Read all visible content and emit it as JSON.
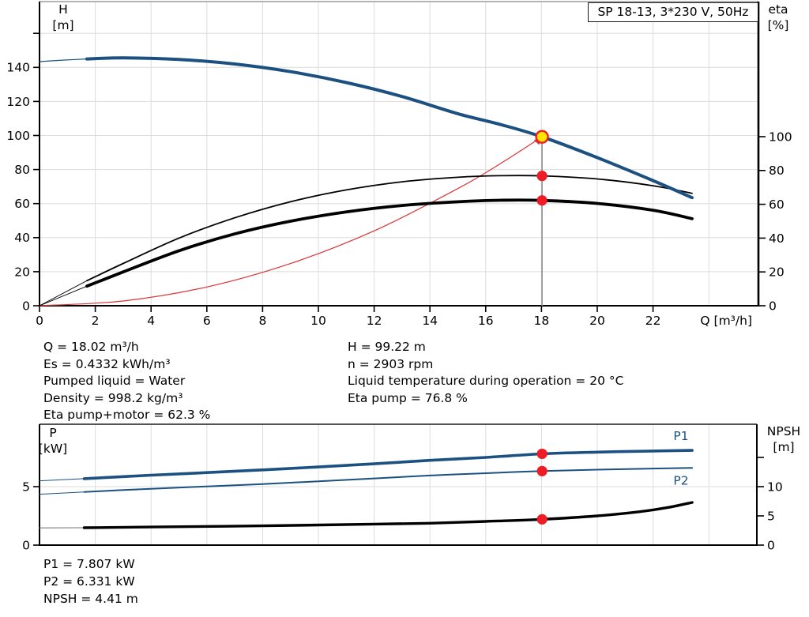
{
  "title_box": "SP 18-13, 3*230 V, 50Hz",
  "axis_corners": {
    "head_left_1": "H",
    "head_left_2": "[m]",
    "head_right_1": "eta",
    "head_right_2": "[%]",
    "power_left_1": "P",
    "power_left_2": "[kW]",
    "power_right_1": "NPSH",
    "power_right_2": "[m]"
  },
  "info_top_left": [
    "Q = 18.02 m³/h",
    "Es = 0.4332 kWh/m³",
    "Pumped liquid = Water",
    "Density = 998.2 kg/m³",
    "Eta pump+motor = 62.3 %"
  ],
  "info_top_right": [
    "H = 99.22 m",
    "n = 2903 rpm",
    "Liquid temperature during operation = 20 °C",
    "Eta pump = 76.8 %"
  ],
  "info_bottom": [
    "P1 = 7.807 kW",
    "P2 = 6.331 kW",
    "NPSH = 4.41 m"
  ],
  "colors": {
    "curve_blue": "#1b5080",
    "curve_black": "#000000",
    "system_red": "#d93535",
    "marker_red": "#ee1c25",
    "duty_yellow": "#ffe400",
    "grid": "#dcdcdc",
    "duty_line": "#8f8f8f",
    "lead_gray": "#777777"
  },
  "chart_data": [
    {
      "id": "head",
      "type": "line",
      "title": "SP 18-13, 3*230 V, 50Hz",
      "x_axis": {
        "label": "Q [m³/h]",
        "min": 0,
        "max": 25.78,
        "ticks": [
          {
            "v": 0,
            "label": "0"
          },
          {
            "v": 2,
            "label": "2"
          },
          {
            "v": 4,
            "label": "4"
          },
          {
            "v": 6,
            "label": "6"
          },
          {
            "v": 8,
            "label": "8"
          },
          {
            "v": 10,
            "label": "10"
          },
          {
            "v": 12,
            "label": "12"
          },
          {
            "v": 14,
            "label": "14"
          },
          {
            "v": 16,
            "label": "16"
          },
          {
            "v": 18,
            "label": "18"
          },
          {
            "v": 20,
            "label": "20"
          },
          {
            "v": 22,
            "label": "22"
          }
        ],
        "grid": [
          2,
          4,
          6,
          8,
          10,
          12,
          14,
          16,
          18,
          20,
          22,
          24
        ]
      },
      "y_left": {
        "label": "H [m]",
        "min": 0,
        "max": 178,
        "ticks": [
          {
            "v": 0,
            "label": "0"
          },
          {
            "v": 20,
            "label": "20"
          },
          {
            "v": 40,
            "label": "40"
          },
          {
            "v": 60,
            "label": "60"
          },
          {
            "v": 80,
            "label": "80"
          },
          {
            "v": 100,
            "label": "100"
          },
          {
            "v": 120,
            "label": "120"
          },
          {
            "v": 140,
            "label": "140"
          },
          {
            "v": 160,
            "label": ""
          }
        ],
        "grid": [
          20,
          40,
          60,
          80,
          100,
          120,
          140,
          160
        ]
      },
      "y_right": {
        "label": "eta [%]",
        "min": 0,
        "max": 178,
        "ticks": [
          {
            "v": 0,
            "label": "0"
          },
          {
            "v": 20,
            "label": "20"
          },
          {
            "v": 40,
            "label": "40"
          },
          {
            "v": 60,
            "label": "60"
          },
          {
            "v": 80,
            "label": "80"
          },
          {
            "v": 100,
            "label": "100"
          }
        ]
      },
      "series": [
        {
          "name": "system-curve",
          "color": "#d93535",
          "width": 1.2,
          "axis": "left",
          "points": [
            [
              0,
              0
            ],
            [
              3,
              2.8
            ],
            [
              6,
              11.0
            ],
            [
              9,
              24.8
            ],
            [
              12,
              44.0
            ],
            [
              15,
              68.8
            ],
            [
              16.5,
              83.2
            ],
            [
              18.02,
              99.22
            ]
          ]
        },
        {
          "name": "eta-pump-motor-lead",
          "color": "#000000",
          "width": 0.9,
          "axis": "right",
          "points": [
            [
              0,
              0
            ],
            [
              1.7,
              11.6
            ]
          ]
        },
        {
          "name": "eta-pump-motor-curve",
          "color": "#000000",
          "width": 3.8,
          "axis": "right",
          "points": [
            [
              1.7,
              11.6
            ],
            [
              3,
              20
            ],
            [
              5,
              32.5
            ],
            [
              7,
              42.5
            ],
            [
              9,
              50
            ],
            [
              11,
              55.5
            ],
            [
              13,
              59.3
            ],
            [
              15,
              61.5
            ],
            [
              16.5,
              62.4
            ],
            [
              18.02,
              62.3
            ],
            [
              20,
              60.5
            ],
            [
              22,
              56.5
            ],
            [
              23.4,
              51.5
            ]
          ]
        },
        {
          "name": "eta-pump-lead",
          "color": "#000000",
          "width": 0.9,
          "axis": "right",
          "points": [
            [
              0,
              0
            ],
            [
              1.7,
              14.8
            ]
          ]
        },
        {
          "name": "eta-pump-curve",
          "color": "#000000",
          "width": 1.8,
          "axis": "right",
          "points": [
            [
              1.7,
              14.8
            ],
            [
              3,
              25
            ],
            [
              5,
              40
            ],
            [
              7,
              52
            ],
            [
              9,
              61.5
            ],
            [
              11,
              68.5
            ],
            [
              13,
              73.3
            ],
            [
              15,
              76.0
            ],
            [
              16.5,
              76.9
            ],
            [
              18.02,
              76.8
            ],
            [
              20,
              75.0
            ],
            [
              22,
              71.0
            ],
            [
              23.4,
              66.5
            ]
          ]
        },
        {
          "name": "pump-curve-lead",
          "color": "#1b5080",
          "width": 1.2,
          "axis": "left",
          "points": [
            [
              0,
              143.4
            ],
            [
              0.9,
              144.3
            ],
            [
              1.7,
              144.95
            ]
          ]
        },
        {
          "name": "pump-curve",
          "color": "#1b5080",
          "width": 4,
          "axis": "left",
          "points": [
            [
              1.7,
              144.95
            ],
            [
              3,
              145.6
            ],
            [
              5,
              144.7
            ],
            [
              7,
              142.0
            ],
            [
              9,
              137.5
            ],
            [
              11,
              131.1
            ],
            [
              13,
              122.9
            ],
            [
              15,
              112.8
            ],
            [
              16.5,
              106.6
            ],
            [
              18.02,
              99.22
            ],
            [
              20,
              87.0
            ],
            [
              22,
              73.5
            ],
            [
              23.4,
              63.5
            ]
          ]
        }
      ],
      "labels": [],
      "markers": [
        {
          "type": "vline",
          "q": 18.02,
          "v": 99.22,
          "axis": "left",
          "color": "#8f8f8f"
        },
        {
          "type": "arrow",
          "q": 18.02,
          "v": 99.22,
          "axis": "left",
          "color": "#d93535"
        },
        {
          "type": "dot",
          "name": "eta-pump-duty-dot",
          "q": 18.02,
          "v": 76.8,
          "axis": "right",
          "r": 6.6,
          "fill": "#ee1c25"
        },
        {
          "type": "dot",
          "name": "eta-pump-motor-duty-dot",
          "q": 18.02,
          "v": 62.3,
          "axis": "right",
          "r": 6.6,
          "fill": "#ee1c25"
        },
        {
          "type": "duty",
          "name": "duty-point",
          "q": 18.02,
          "v": 99.22,
          "axis": "left",
          "r": 7.5,
          "fill": "#ffe400",
          "stroke": "#ee1c25"
        }
      ],
      "duty_values": {
        "Q": 18.02,
        "H": 99.22,
        "eta_pump": 76.8,
        "eta_pump_motor": 62.3
      }
    },
    {
      "id": "power",
      "type": "line",
      "x_axis": {
        "label": "",
        "min": 0,
        "max": 25.72,
        "ticks": [],
        "grid": [
          2,
          4,
          6,
          8,
          10,
          12,
          14,
          16,
          18,
          20,
          22,
          24
        ]
      },
      "y_left": {
        "label": "P [kW]",
        "min": 0,
        "max": 10.3,
        "ticks": [
          {
            "v": 0,
            "label": "0"
          },
          {
            "v": 5,
            "label": "5"
          }
        ],
        "grid": [
          5
        ]
      },
      "y_right": {
        "label": "NPSH [m]",
        "min": 0,
        "max": 20.7,
        "ticks": [
          {
            "v": 0,
            "label": "0"
          },
          {
            "v": 5,
            "label": "5"
          },
          {
            "v": 10,
            "label": "10"
          },
          {
            "v": 15,
            "label": ""
          }
        ]
      },
      "series": [
        {
          "name": "npsh-lead",
          "color": "#777777",
          "width": 1.1,
          "axis": "right",
          "points": [
            [
              0,
              2.95
            ],
            [
              1.6,
              2.97
            ]
          ]
        },
        {
          "name": "npsh-curve",
          "color": "#000000",
          "width": 3.4,
          "axis": "right",
          "points": [
            [
              1.6,
              2.97
            ],
            [
              4,
              3.1
            ],
            [
              8,
              3.3
            ],
            [
              12,
              3.6
            ],
            [
              14,
              3.75
            ],
            [
              16,
              4.05
            ],
            [
              18.02,
              4.41
            ],
            [
              20,
              5.0
            ],
            [
              21.5,
              5.7
            ],
            [
              22.5,
              6.4
            ],
            [
              23.4,
              7.3
            ]
          ]
        },
        {
          "name": "p2-lead",
          "color": "#1b5080",
          "width": 1,
          "axis": "left",
          "points": [
            [
              0,
              4.35
            ],
            [
              1.6,
              4.55
            ]
          ]
        },
        {
          "name": "p2-curve",
          "color": "#1b5080",
          "width": 2,
          "axis": "left",
          "points": [
            [
              1.6,
              4.55
            ],
            [
              4,
              4.82
            ],
            [
              6,
              5.02
            ],
            [
              8,
              5.22
            ],
            [
              10,
              5.45
            ],
            [
              12,
              5.7
            ],
            [
              14,
              5.95
            ],
            [
              16,
              6.15
            ],
            [
              18.02,
              6.331
            ],
            [
              20,
              6.45
            ],
            [
              22,
              6.55
            ],
            [
              23.4,
              6.6
            ]
          ]
        },
        {
          "name": "p1-lead",
          "color": "#1b5080",
          "width": 1,
          "axis": "left",
          "points": [
            [
              0,
              5.5
            ],
            [
              1.6,
              5.68
            ]
          ]
        },
        {
          "name": "p1-curve",
          "color": "#1b5080",
          "width": 3.6,
          "axis": "left",
          "points": [
            [
              1.6,
              5.68
            ],
            [
              4,
              5.98
            ],
            [
              6,
              6.2
            ],
            [
              8,
              6.43
            ],
            [
              10,
              6.68
            ],
            [
              12,
              6.95
            ],
            [
              14,
              7.25
            ],
            [
              16,
              7.5
            ],
            [
              18.02,
              7.807
            ],
            [
              20,
              7.95
            ],
            [
              22,
              8.05
            ],
            [
              23.4,
              8.1
            ]
          ]
        }
      ],
      "labels": [
        {
          "text": "P1",
          "q": 23.0,
          "v": 9.35,
          "axis": "left",
          "color": "#1b5080",
          "name": "p1-series-label"
        },
        {
          "text": "P2",
          "q": 23.0,
          "v": 5.52,
          "axis": "left",
          "color": "#1b5080",
          "name": "p2-series-label"
        }
      ],
      "markers": [
        {
          "type": "dot",
          "name": "p1-duty-dot",
          "q": 18.02,
          "v": 7.807,
          "axis": "left",
          "r": 6.6,
          "fill": "#ee1c25"
        },
        {
          "type": "dot",
          "name": "p2-duty-dot",
          "q": 18.02,
          "v": 6.331,
          "axis": "left",
          "r": 6.6,
          "fill": "#ee1c25"
        },
        {
          "type": "dot",
          "name": "npsh-duty-dot",
          "q": 18.02,
          "v": 4.41,
          "axis": "right",
          "r": 6.6,
          "fill": "#ee1c25"
        }
      ],
      "duty_values": {
        "P1_kW": 7.807,
        "P2_kW": 6.331,
        "NPSH_m": 4.41
      }
    }
  ]
}
